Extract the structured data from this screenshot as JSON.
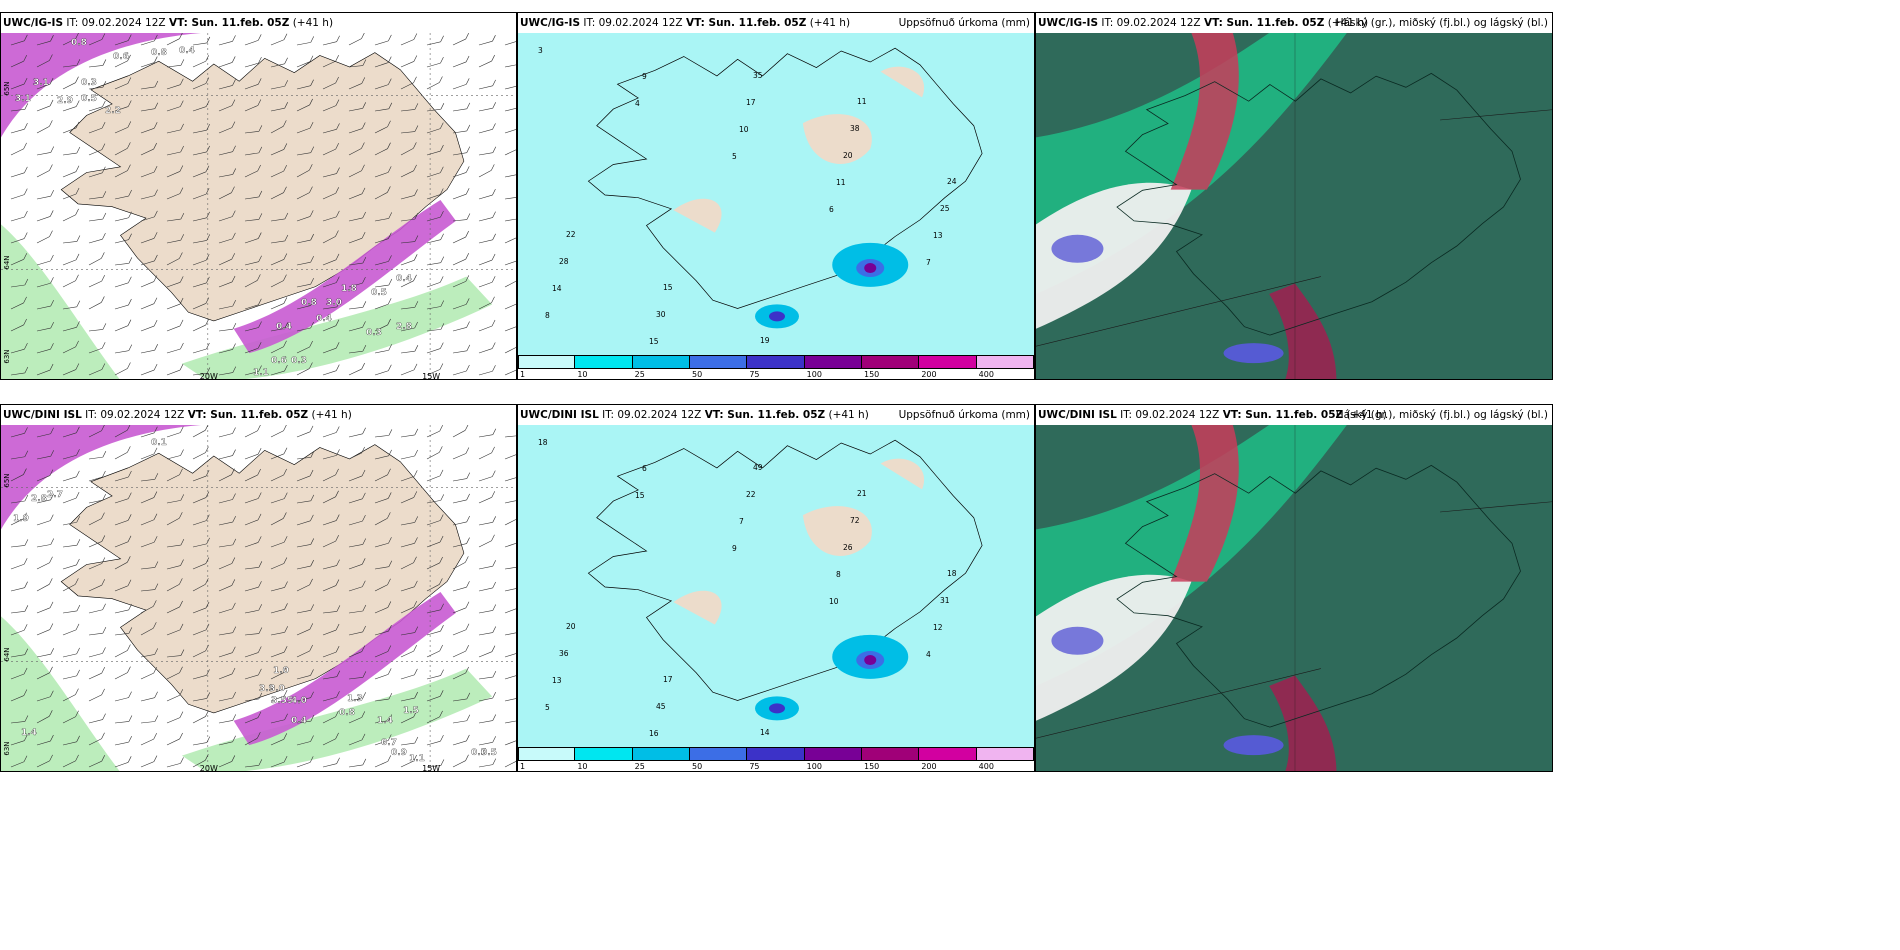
{
  "rows": [
    {
      "model": "UWC/IG-IS",
      "p1": {
        "it_label": "IT: 09.02.2024 12Z",
        "vt_label": "VT: Sun. 11.feb. 05Z",
        "lead": "(+41 h)",
        "values": [
          "0.8",
          "0.6",
          "0.8",
          "0.4",
          "3.1",
          "0.3",
          "3.1",
          "2.9",
          "0.5",
          "2.2",
          "0.4",
          "0.8",
          "3.0",
          "0.4",
          "1.8",
          "0.5",
          "0.4",
          "0.6",
          "0.3",
          "0.3",
          "2.8",
          "1.1"
        ],
        "lon_labels": [
          "20W",
          "15W"
        ],
        "lat_labels": [
          "65N",
          "64N",
          "63N"
        ]
      },
      "p2": {
        "it_label": "IT: 09.02.2024 12Z",
        "vt_label": "VT: Sun. 11.feb. 05Z",
        "lead": "(+41 h)",
        "right": "Uppsöfnuð úrkoma (mm)",
        "values": [
          "3",
          "4",
          "5",
          "6",
          "7",
          "8",
          "9",
          "10",
          "11",
          "13",
          "14",
          "15",
          "17",
          "20",
          "25",
          "28",
          "30",
          "35",
          "38",
          "24",
          "22",
          "15",
          "19",
          "11"
        ]
      },
      "p3": {
        "it_label": "IT: 09.02.2024 12Z",
        "vt_label": "VT: Sun. 11.feb. 05Z",
        "lead": "(+41 h)",
        "right": "Háský (gr.), miðský (fj.bl.) og lágský (bl.)"
      }
    },
    {
      "model": "UWC/DINI ISL",
      "p1": {
        "it_label": "IT: 09.02.2024 12Z",
        "vt_label": "VT: Sun. 11.feb. 05Z",
        "lead": "(+41 h)",
        "values": [
          "0.1",
          "2.8",
          "2.7",
          "1.9",
          "1.0",
          "3.9",
          "3.0",
          "3.55",
          "4.0",
          "0.4",
          "1.3",
          "0.8",
          "1.4",
          "1.5",
          "0.7",
          "0.9",
          "1.1",
          "0.5",
          "0.5",
          "1.4"
        ],
        "lon_labels": [
          "20W",
          "15W"
        ],
        "lat_labels": [
          "65N",
          "64N",
          "63N"
        ]
      },
      "p2": {
        "it_label": "IT: 09.02.2024 12Z",
        "vt_label": "VT: Sun. 11.feb. 05Z",
        "lead": "(+41 h)",
        "right": "Uppsöfnuð úrkoma (mm)",
        "values": [
          "18",
          "15",
          "9",
          "10",
          "4",
          "5",
          "6",
          "7",
          "8",
          "12",
          "13",
          "16",
          "22",
          "26",
          "31",
          "36",
          "45",
          "49",
          "72",
          "18",
          "20",
          "17",
          "14",
          "21"
        ]
      },
      "p3": {
        "it_label": "IT: 09.02.2024 12Z",
        "vt_label": "VT: Sun. 11.feb. 05Z",
        "lead": "(+41 h)",
        "right": "Háský (gr.), miðský (fj.bl.) og lágský (bl.)"
      }
    }
  ],
  "colorbar": {
    "labels": [
      "1",
      "10",
      "25",
      "50",
      "75",
      "100",
      "150",
      "200",
      "400"
    ],
    "colors": [
      "#c8fafa",
      "#00e6f0",
      "#00bee6",
      "#3c6ee6",
      "#3c32c8",
      "#780096",
      "#a00078",
      "#d200a0",
      "#f0b4f0"
    ]
  },
  "colors": {
    "land": "#ecdccb",
    "sea": "#aaf5f5",
    "precip_pink": "#c85ad2",
    "precip_green": "#a0e6a0",
    "cloud_dark": "#2f6a5a"
  }
}
